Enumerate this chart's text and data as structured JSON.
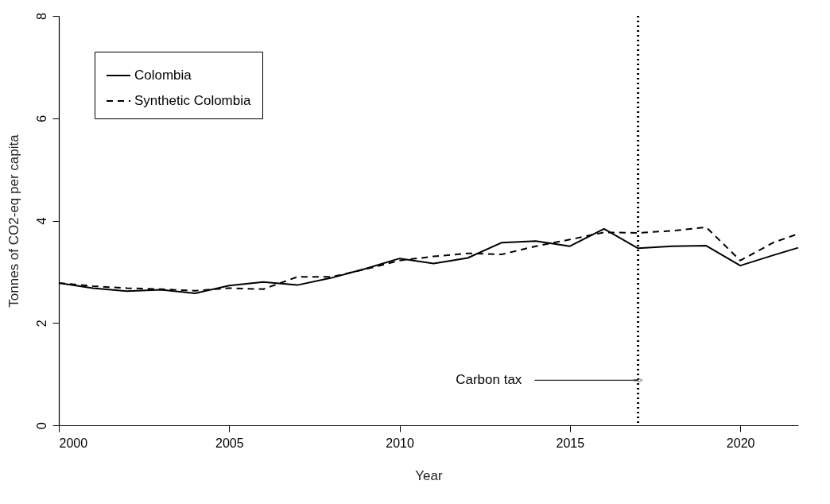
{
  "chart_data": {
    "type": "line",
    "xlabel": "Year",
    "ylabel": "Tonnes of CO2-eq per capita",
    "x": [
      2000,
      2001,
      2002,
      2003,
      2004,
      2005,
      2006,
      2007,
      2008,
      2009,
      2010,
      2011,
      2012,
      2013,
      2014,
      2015,
      2016,
      2017,
      2018,
      2019,
      2020,
      2021,
      2021.7
    ],
    "series": [
      {
        "name": "Colombia",
        "color": "#000000",
        "line_style": "solid",
        "values": [
          2.78,
          2.68,
          2.62,
          2.65,
          2.58,
          2.73,
          2.8,
          2.74,
          2.88,
          3.06,
          3.26,
          3.16,
          3.27,
          3.57,
          3.6,
          3.5,
          3.84,
          3.46,
          3.5,
          3.51,
          3.12,
          3.33,
          3.47
        ]
      },
      {
        "name": "Synthetic Colombia",
        "color": "#000000",
        "line_style": "dashed",
        "values": [
          2.78,
          2.72,
          2.68,
          2.66,
          2.63,
          2.68,
          2.66,
          2.9,
          2.9,
          3.05,
          3.22,
          3.3,
          3.36,
          3.34,
          3.5,
          3.63,
          3.77,
          3.76,
          3.8,
          3.87,
          3.22,
          3.58,
          3.74
        ]
      }
    ],
    "xlim": [
      2000,
      2021.7
    ],
    "xticks": [
      2000,
      2005,
      2010,
      2015,
      2020
    ],
    "ylim": [
      0,
      8
    ],
    "yticks": [
      0,
      2,
      4,
      6,
      8
    ],
    "ref_lines": [
      {
        "axis": "x",
        "value": 2017,
        "label": "Carbon tax",
        "line_style": "dotted",
        "color": "#000000"
      }
    ],
    "grid": false,
    "legend": "top left",
    "marker": "none"
  }
}
